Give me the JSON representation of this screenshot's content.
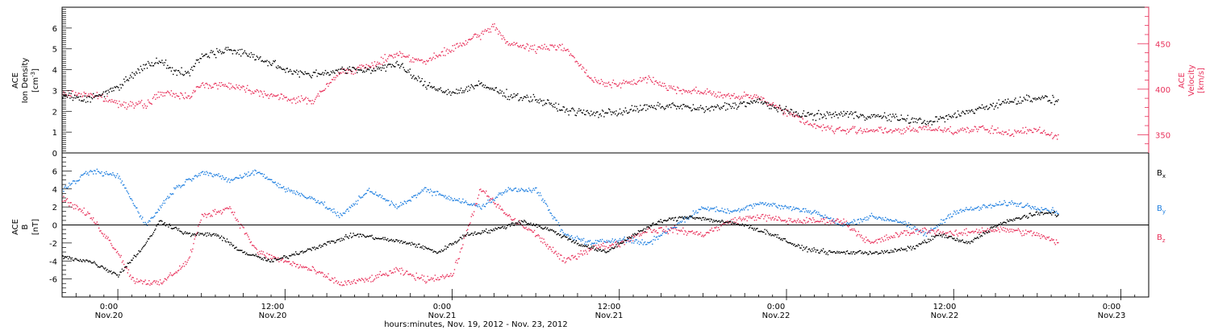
{
  "colors": {
    "black": "#000000",
    "pink": "#e8305a",
    "blue": "#1f7fe0",
    "background": "#ffffff"
  },
  "xaxis": {
    "tick_labels": [
      {
        "time": "0:00",
        "day": "Nov.20"
      },
      {
        "time": "12:00",
        "day": "Nov.20"
      },
      {
        "time": "0:00",
        "day": "Nov.21"
      },
      {
        "time": "12:00",
        "day": "Nov.21"
      },
      {
        "time": "0:00",
        "day": "Nov.22"
      },
      {
        "time": "12:00",
        "day": "Nov.22"
      },
      {
        "time": "0:00",
        "day": "Nov.23"
      }
    ],
    "title": "hours:minutes, Nov. 19, 2012 - Nov. 23, 2012"
  },
  "chart_data": [
    {
      "type": "scatter",
      "panel": "top",
      "left_axis_label": [
        "ACE",
        "Ion Density",
        "[cm",
        "-3",
        "]"
      ],
      "right_axis_label": [
        "ACE",
        "Velocity",
        "[km/s]"
      ],
      "x_range": [
        "2012-11-19 20:00",
        "2012-11-23 02:00"
      ],
      "ylim_left": [
        0,
        7
      ],
      "yticks_left": [
        0,
        1,
        2,
        3,
        4,
        5,
        6
      ],
      "ylim_right": [
        330,
        490
      ],
      "yticks_right": [
        350,
        400,
        450
      ],
      "series": [
        {
          "axis": "left",
          "color": "#000000",
          "points": [
            [
              "2012-11-19 20:00",
              2.8
            ],
            [
              "2012-11-19 22:00",
              2.6
            ],
            [
              "2012-11-20 00:00",
              3.2
            ],
            [
              "2012-11-20 01:00",
              3.8
            ],
            [
              "2012-11-20 02:00",
              4.2
            ],
            [
              "2012-11-20 03:00",
              4.5
            ],
            [
              "2012-11-20 04:00",
              4.0
            ],
            [
              "2012-11-20 05:00",
              3.8
            ],
            [
              "2012-11-20 06:00",
              4.7
            ],
            [
              "2012-11-20 08:00",
              5.0
            ],
            [
              "2012-11-20 10:00",
              4.6
            ],
            [
              "2012-11-20 12:00",
              4.0
            ],
            [
              "2012-11-20 14:00",
              3.8
            ],
            [
              "2012-11-20 16:00",
              4.0
            ],
            [
              "2012-11-20 18:00",
              4.0
            ],
            [
              "2012-11-20 20:00",
              4.3
            ],
            [
              "2012-11-20 22:00",
              3.3
            ],
            [
              "2012-11-21 00:00",
              2.9
            ],
            [
              "2012-11-21 02:00",
              3.3
            ],
            [
              "2012-11-21 04:00",
              2.8
            ],
            [
              "2012-11-21 06:00",
              2.6
            ],
            [
              "2012-11-21 08:00",
              2.1
            ],
            [
              "2012-11-21 10:00",
              1.9
            ],
            [
              "2012-11-21 12:00",
              2.0
            ],
            [
              "2012-11-21 14:00",
              2.2
            ],
            [
              "2012-11-21 16:00",
              2.3
            ],
            [
              "2012-11-21 18:00",
              2.1
            ],
            [
              "2012-11-21 20:00",
              2.3
            ],
            [
              "2012-11-21 22:00",
              2.5
            ],
            [
              "2012-11-22 00:00",
              2.0
            ],
            [
              "2012-11-22 02:00",
              1.8
            ],
            [
              "2012-11-22 04:00",
              1.9
            ],
            [
              "2012-11-22 06:00",
              1.8
            ],
            [
              "2012-11-22 08:00",
              1.7
            ],
            [
              "2012-11-22 10:00",
              1.5
            ],
            [
              "2012-11-22 12:00",
              1.8
            ],
            [
              "2012-11-22 14:00",
              2.2
            ],
            [
              "2012-11-22 16:00",
              2.5
            ],
            [
              "2012-11-22 18:00",
              2.7
            ],
            [
              "2012-11-22 19:30",
              2.5
            ]
          ]
        },
        {
          "axis": "right",
          "color": "#e8305a",
          "points": [
            [
              "2012-11-19 20:00",
              395
            ],
            [
              "2012-11-19 22:00",
              395
            ],
            [
              "2012-11-20 00:00",
              385
            ],
            [
              "2012-11-20 02:00",
              383
            ],
            [
              "2012-11-20 03:00",
              396
            ],
            [
              "2012-11-20 05:00",
              393
            ],
            [
              "2012-11-20 06:00",
              405
            ],
            [
              "2012-11-20 08:00",
              405
            ],
            [
              "2012-11-20 10:00",
              398
            ],
            [
              "2012-11-20 12:00",
              390
            ],
            [
              "2012-11-20 14:00",
              388
            ],
            [
              "2012-11-20 16:00",
              420
            ],
            [
              "2012-11-20 18:00",
              425
            ],
            [
              "2012-11-20 20:00",
              440
            ],
            [
              "2012-11-20 22:00",
              430
            ],
            [
              "2012-11-21 00:00",
              445
            ],
            [
              "2012-11-21 02:00",
              460
            ],
            [
              "2012-11-21 03:00",
              470
            ],
            [
              "2012-11-21 04:00",
              450
            ],
            [
              "2012-11-21 06:00",
              445
            ],
            [
              "2012-11-21 08:00",
              448
            ],
            [
              "2012-11-21 10:00",
              410
            ],
            [
              "2012-11-21 12:00",
              405
            ],
            [
              "2012-11-21 14:00",
              412
            ],
            [
              "2012-11-21 16:00",
              400
            ],
            [
              "2012-11-21 18:00",
              398
            ],
            [
              "2012-11-21 20:00",
              392
            ],
            [
              "2012-11-21 22:00",
              392
            ],
            [
              "2012-11-22 00:00",
              375
            ],
            [
              "2012-11-22 02:00",
              360
            ],
            [
              "2012-11-22 04:00",
              355
            ],
            [
              "2012-11-22 06:00",
              356
            ],
            [
              "2012-11-22 08:00",
              354
            ],
            [
              "2012-11-22 10:00",
              358
            ],
            [
              "2012-11-22 12:00",
              355
            ],
            [
              "2012-11-22 14:00",
              357
            ],
            [
              "2012-11-22 16:00",
              352
            ],
            [
              "2012-11-22 18:00",
              356
            ],
            [
              "2012-11-22 19:30",
              348
            ]
          ]
        }
      ]
    },
    {
      "type": "scatter",
      "panel": "bottom",
      "left_axis_label": [
        "ACE",
        "B",
        "[nT]"
      ],
      "x_range": [
        "2012-11-19 20:00",
        "2012-11-23 02:00"
      ],
      "ylim": [
        -8,
        8
      ],
      "yticks": [
        -6,
        -4,
        -2,
        0,
        2,
        4,
        6
      ],
      "zero_line": true,
      "legend": [
        {
          "label": "B",
          "subscript": "x",
          "color": "#000000"
        },
        {
          "label": "B",
          "subscript": "y",
          "color": "#1f7fe0"
        },
        {
          "label": "B",
          "subscript": "z",
          "color": "#e8305a"
        }
      ],
      "series": [
        {
          "name": "Bx",
          "color": "#000000",
          "points": [
            [
              "2012-11-19 20:00",
              -3.5
            ],
            [
              "2012-11-19 22:00",
              -4.0
            ],
            [
              "2012-11-20 00:00",
              -5.5
            ],
            [
              "2012-11-20 02:00",
              -2.0
            ],
            [
              "2012-11-20 03:00",
              0.5
            ],
            [
              "2012-11-20 05:00",
              -1.0
            ],
            [
              "2012-11-20 07:00",
              -1.0
            ],
            [
              "2012-11-20 09:00",
              -3.0
            ],
            [
              "2012-11-20 11:00",
              -4.0
            ],
            [
              "2012-11-20 13:00",
              -3.0
            ],
            [
              "2012-11-20 15:00",
              -2.0
            ],
            [
              "2012-11-20 17:00",
              -1.0
            ],
            [
              "2012-11-20 19:00",
              -1.5
            ],
            [
              "2012-11-20 21:00",
              -2.0
            ],
            [
              "2012-11-20 23:00",
              -3.0
            ],
            [
              "2012-11-21 01:00",
              -1.0
            ],
            [
              "2012-11-21 03:00",
              -0.5
            ],
            [
              "2012-11-21 05:00",
              0.5
            ],
            [
              "2012-11-21 07:00",
              -0.5
            ],
            [
              "2012-11-21 09:00",
              -2.0
            ],
            [
              "2012-11-21 11:00",
              -3.0
            ],
            [
              "2012-11-21 13:00",
              -1.0
            ],
            [
              "2012-11-21 15:00",
              0.5
            ],
            [
              "2012-11-21 17:00",
              1.0
            ],
            [
              "2012-11-21 19:00",
              0.5
            ],
            [
              "2012-11-21 21:00",
              0.0
            ],
            [
              "2012-11-21 23:00",
              -1.0
            ],
            [
              "2012-11-22 01:00",
              -2.5
            ],
            [
              "2012-11-22 03:00",
              -3.0
            ],
            [
              "2012-11-22 05:00",
              -3.0
            ],
            [
              "2012-11-22 07:00",
              -3.0
            ],
            [
              "2012-11-22 09:00",
              -2.5
            ],
            [
              "2012-11-22 11:00",
              -1.0
            ],
            [
              "2012-11-22 13:00",
              -2.0
            ],
            [
              "2012-11-22 15:00",
              0.0
            ],
            [
              "2012-11-22 17:00",
              1.0
            ],
            [
              "2012-11-22 19:00",
              1.5
            ],
            [
              "2012-11-22 19:30",
              1.0
            ]
          ]
        },
        {
          "name": "By",
          "color": "#1f7fe0",
          "points": [
            [
              "2012-11-19 20:00",
              4.0
            ],
            [
              "2012-11-19 22:00",
              6.0
            ],
            [
              "2012-11-20 00:00",
              5.5
            ],
            [
              "2012-11-20 02:00",
              0.0
            ],
            [
              "2012-11-20 04:00",
              4.0
            ],
            [
              "2012-11-20 06:00",
              6.0
            ],
            [
              "2012-11-20 08:00",
              5.0
            ],
            [
              "2012-11-20 10:00",
              6.0
            ],
            [
              "2012-11-20 12:00",
              4.0
            ],
            [
              "2012-11-20 14:00",
              3.0
            ],
            [
              "2012-11-20 16:00",
              1.0
            ],
            [
              "2012-11-20 18:00",
              4.0
            ],
            [
              "2012-11-20 20:00",
              2.0
            ],
            [
              "2012-11-20 22:00",
              4.0
            ],
            [
              "2012-11-21 00:00",
              3.0
            ],
            [
              "2012-11-21 02:00",
              2.0
            ],
            [
              "2012-11-21 04:00",
              4.0
            ],
            [
              "2012-11-21 06:00",
              4.0
            ],
            [
              "2012-11-21 08:00",
              -1.0
            ],
            [
              "2012-11-21 10:00",
              -2.0
            ],
            [
              "2012-11-21 12:00",
              -1.5
            ],
            [
              "2012-11-21 14:00",
              -2.0
            ],
            [
              "2012-11-21 16:00",
              0.0
            ],
            [
              "2012-11-21 18:00",
              2.0
            ],
            [
              "2012-11-21 20:00",
              1.5
            ],
            [
              "2012-11-21 22:00",
              2.5
            ],
            [
              "2012-11-22 00:00",
              2.0
            ],
            [
              "2012-11-22 02:00",
              1.5
            ],
            [
              "2012-11-22 04:00",
              0.0
            ],
            [
              "2012-11-22 06:00",
              1.0
            ],
            [
              "2012-11-22 08:00",
              0.5
            ],
            [
              "2012-11-22 10:00",
              -1.0
            ],
            [
              "2012-11-22 12:00",
              1.5
            ],
            [
              "2012-11-22 14:00",
              2.0
            ],
            [
              "2012-11-22 16:00",
              2.5
            ],
            [
              "2012-11-22 18:00",
              2.0
            ],
            [
              "2012-11-22 19:30",
              1.5
            ]
          ]
        },
        {
          "name": "Bz",
          "color": "#e8305a",
          "points": [
            [
              "2012-11-19 20:00",
              3.0
            ],
            [
              "2012-11-19 22:00",
              1.0
            ],
            [
              "2012-11-20 00:00",
              -3.0
            ],
            [
              "2012-11-20 01:00",
              -6.0
            ],
            [
              "2012-11-20 03:00",
              -6.5
            ],
            [
              "2012-11-20 05:00",
              -4.0
            ],
            [
              "2012-11-20 06:00",
              1.0
            ],
            [
              "2012-11-20 08:00",
              2.0
            ],
            [
              "2012-11-20 10:00",
              -3.0
            ],
            [
              "2012-11-20 12:00",
              -4.0
            ],
            [
              "2012-11-20 14:00",
              -5.0
            ],
            [
              "2012-11-20 16:00",
              -6.5
            ],
            [
              "2012-11-20 18:00",
              -6.0
            ],
            [
              "2012-11-20 20:00",
              -5.0
            ],
            [
              "2012-11-20 22:00",
              -6.0
            ],
            [
              "2012-11-21 00:00",
              -5.5
            ],
            [
              "2012-11-21 02:00",
              4.0
            ],
            [
              "2012-11-21 04:00",
              1.0
            ],
            [
              "2012-11-21 06:00",
              -1.0
            ],
            [
              "2012-11-21 08:00",
              -4.0
            ],
            [
              "2012-11-21 10:00",
              -2.5
            ],
            [
              "2012-11-21 12:00",
              -2.0
            ],
            [
              "2012-11-21 14:00",
              -0.5
            ],
            [
              "2012-11-21 16:00",
              -0.5
            ],
            [
              "2012-11-21 18:00",
              -1.0
            ],
            [
              "2012-11-21 20:00",
              0.5
            ],
            [
              "2012-11-21 22:00",
              1.0
            ],
            [
              "2012-11-22 00:00",
              0.5
            ],
            [
              "2012-11-22 02:00",
              0.5
            ],
            [
              "2012-11-22 04:00",
              0.5
            ],
            [
              "2012-11-22 06:00",
              -2.0
            ],
            [
              "2012-11-22 08:00",
              -1.0
            ],
            [
              "2012-11-22 10:00",
              -0.5
            ],
            [
              "2012-11-22 12:00",
              -1.0
            ],
            [
              "2012-11-22 14:00",
              -0.5
            ],
            [
              "2012-11-22 16:00",
              -0.5
            ],
            [
              "2012-11-22 18:00",
              -1.0
            ],
            [
              "2012-11-22 19:30",
              -2.0
            ]
          ]
        }
      ]
    }
  ]
}
